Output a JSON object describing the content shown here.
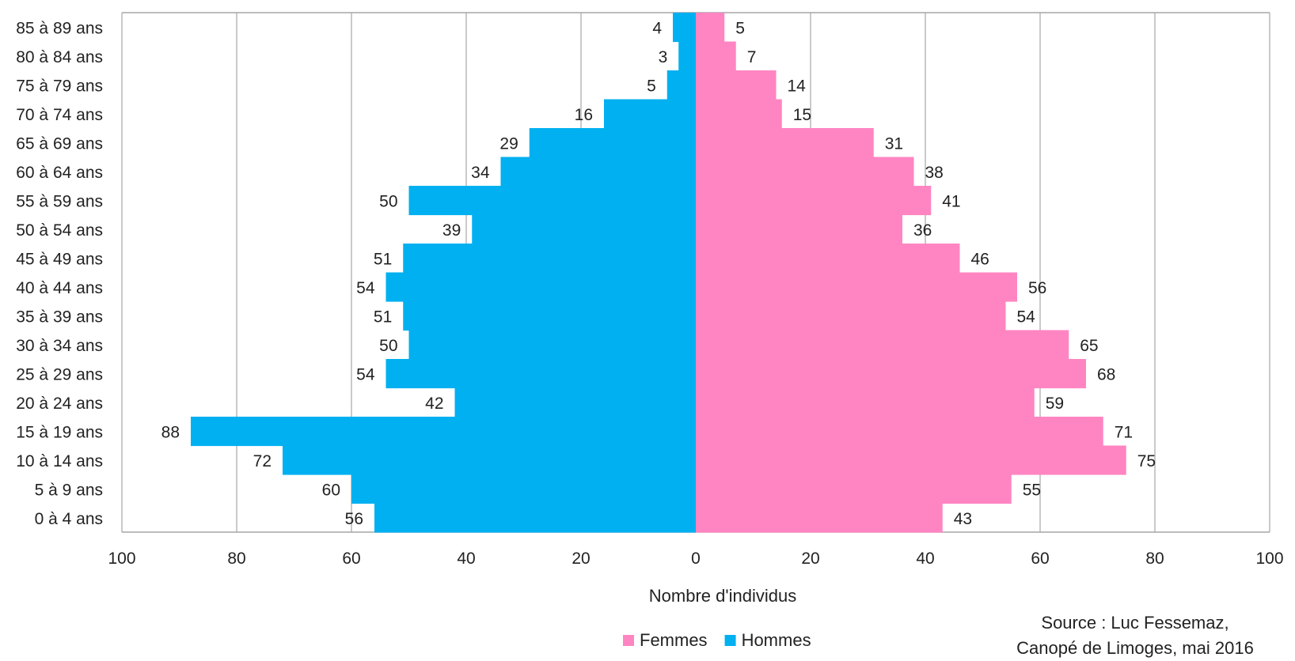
{
  "chart_data": {
    "type": "bar",
    "orientation": "horizontal",
    "subtype": "population-pyramid",
    "categories": [
      "85 à 89 ans",
      "80 à 84 ans",
      "75 à 79 ans",
      "70 à 74 ans",
      "65 à 69 ans",
      "60 à 64 ans",
      "55 à 59 ans",
      "50 à 54 ans",
      "45 à 49 ans",
      "40 à 44 ans",
      "35 à 39 ans",
      "30 à 34 ans",
      "25 à 29 ans",
      "20 à 24 ans",
      "15 à 19 ans",
      "10 à 14 ans",
      "5 à 9 ans",
      "0 à 4 ans"
    ],
    "series": [
      {
        "name": "Hommes",
        "color": "#00B0F0",
        "side": "left",
        "values": [
          4,
          3,
          5,
          16,
          29,
          34,
          50,
          39,
          51,
          54,
          51,
          50,
          54,
          42,
          88,
          72,
          60,
          56
        ]
      },
      {
        "name": "Femmes",
        "color": "#FF85C2",
        "side": "right",
        "values": [
          5,
          7,
          14,
          15,
          31,
          38,
          41,
          36,
          46,
          56,
          54,
          65,
          68,
          59,
          71,
          75,
          55,
          43
        ]
      }
    ],
    "xlabel": "Nombre d'individus",
    "ylabel": "",
    "xlim": [
      -100,
      100
    ],
    "x_ticks": [
      -100,
      -80,
      -60,
      -40,
      -20,
      0,
      20,
      40,
      60,
      80,
      100
    ],
    "x_tick_labels": [
      "100",
      "80",
      "60",
      "40",
      "20",
      "0",
      "20",
      "40",
      "60",
      "80",
      "100"
    ],
    "grid": "vertical",
    "legend": {
      "position": "bottom",
      "order": [
        "Femmes",
        "Hommes"
      ]
    },
    "source_lines": [
      "Source : Luc Fessemaz,",
      "Canopé de Limoges, mai 2016"
    ]
  }
}
